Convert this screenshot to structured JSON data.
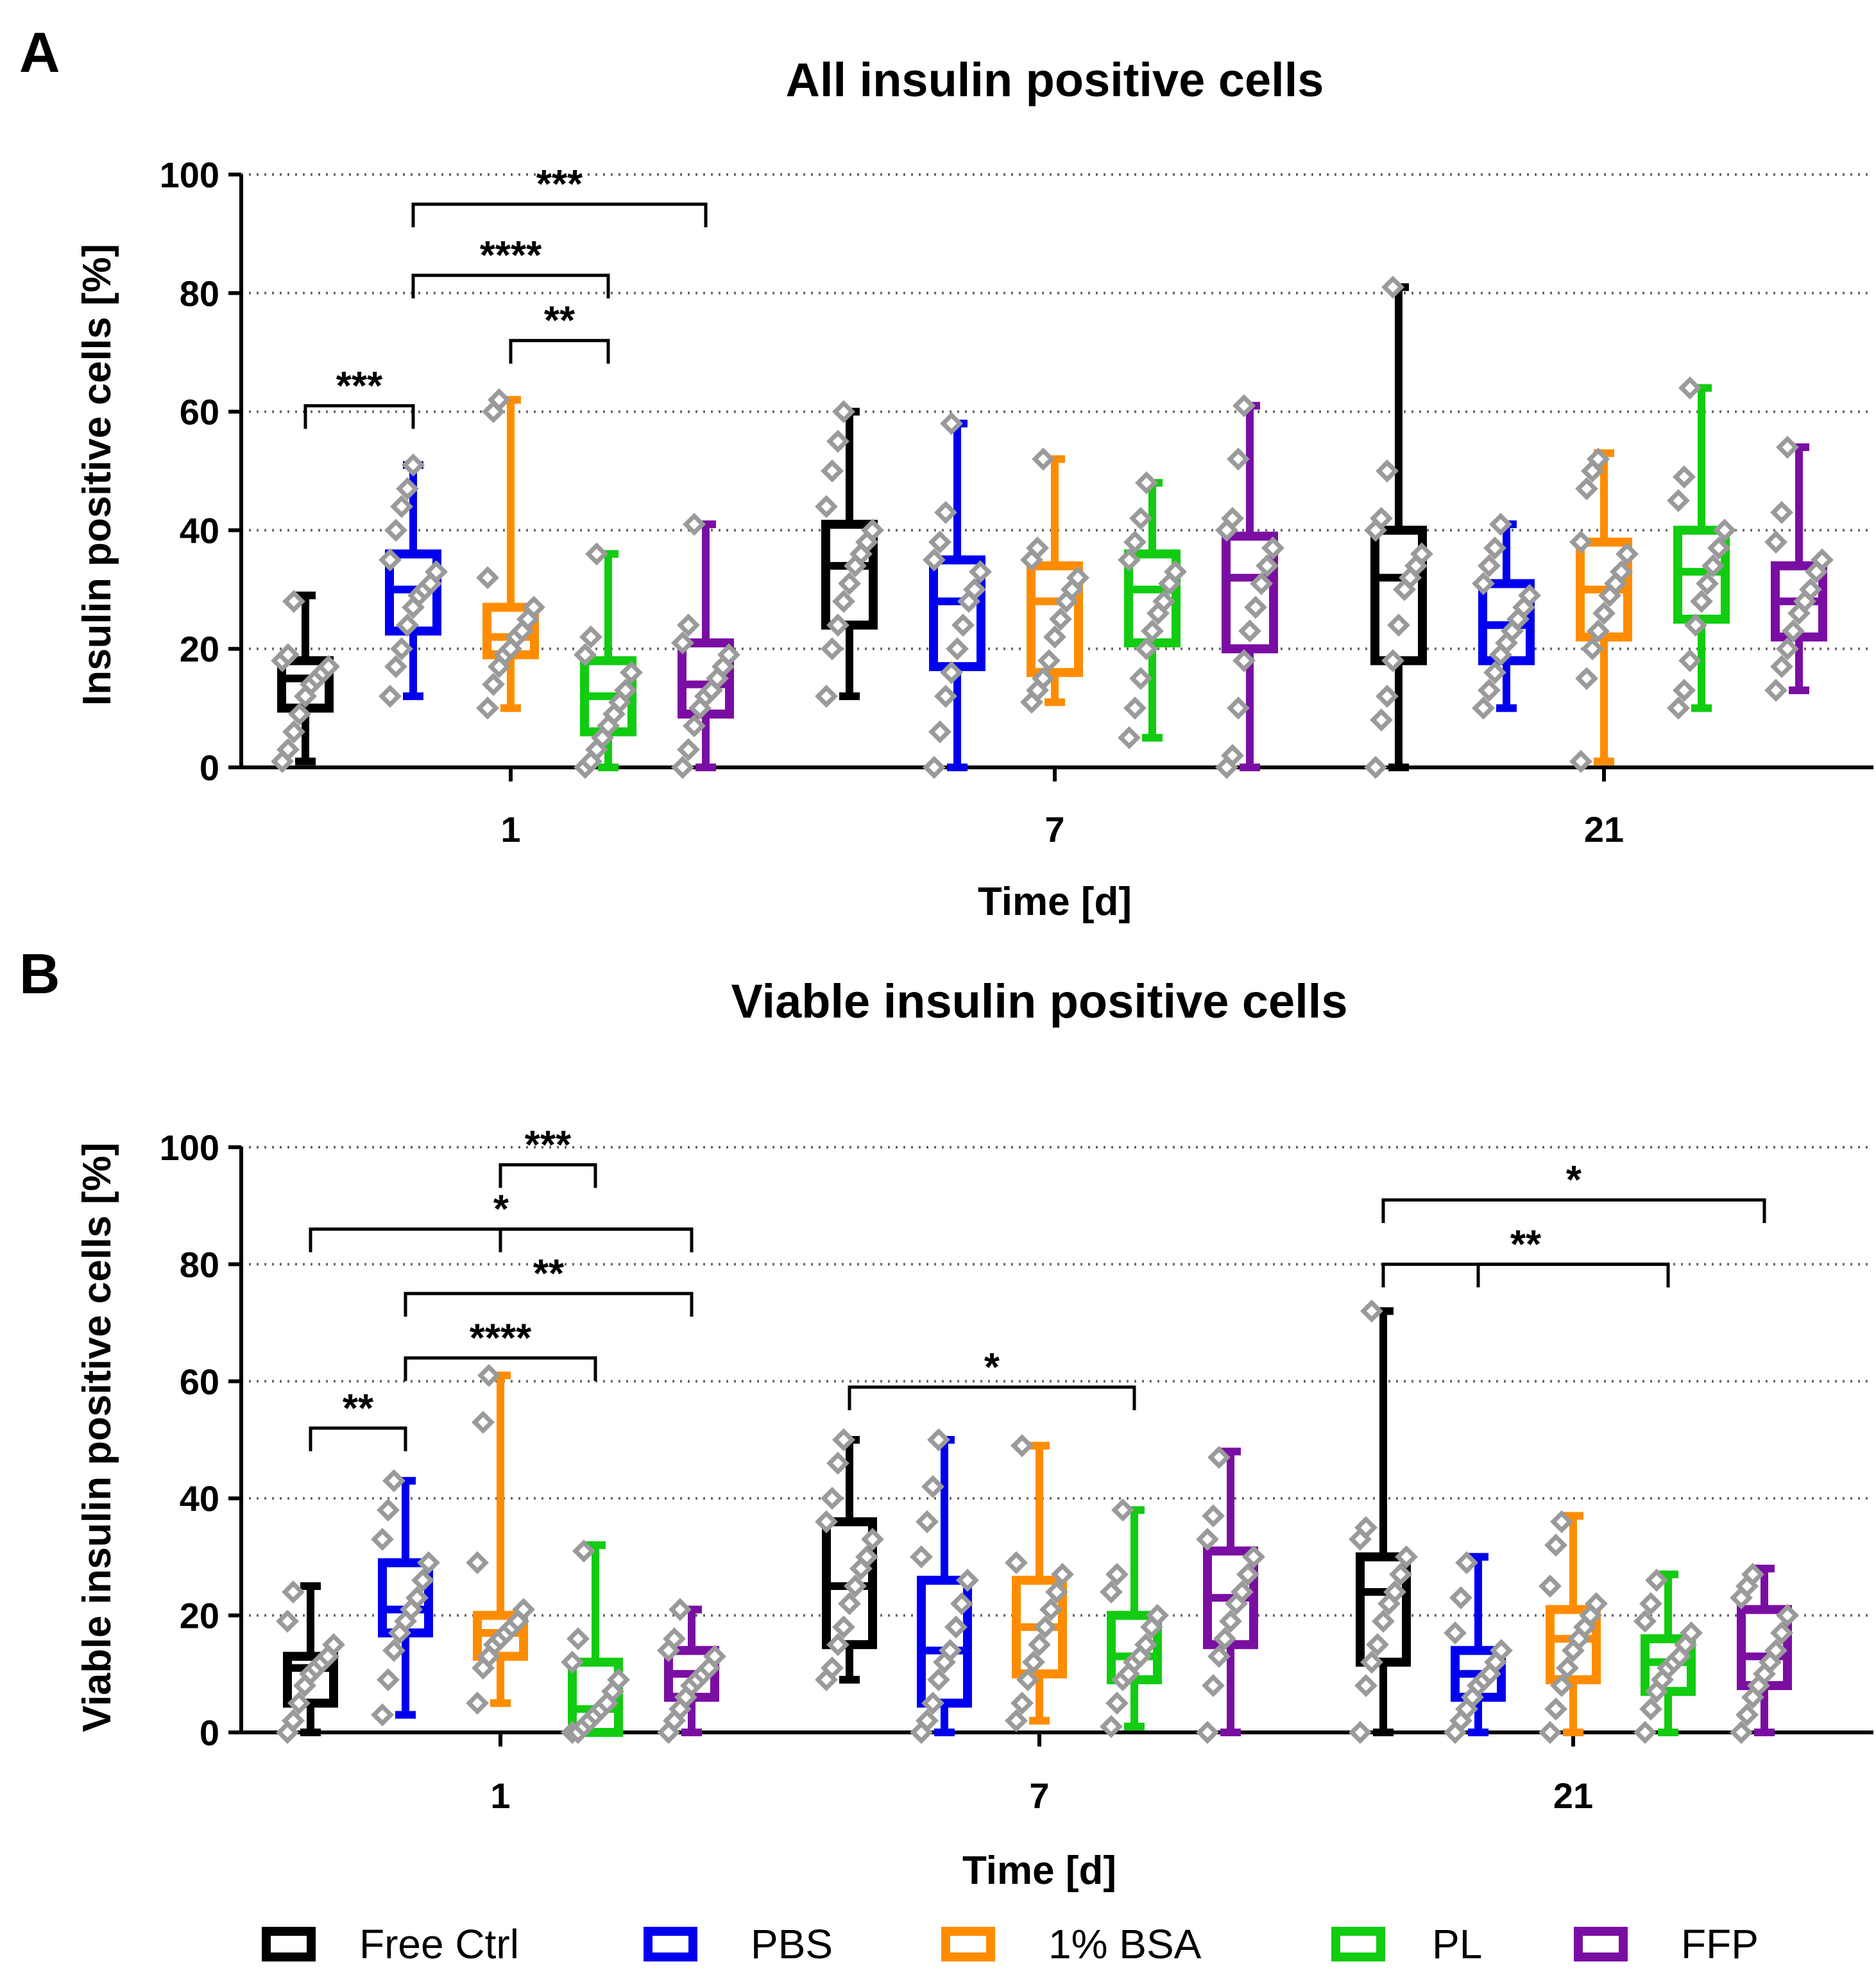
{
  "legend": [
    {
      "label": "Free Ctrl",
      "color": "#000000"
    },
    {
      "label": "PBS",
      "color": "#0000ee"
    },
    {
      "label": "1% BSA",
      "color": "#ff8c00"
    },
    {
      "label": "PL",
      "color": "#11cc11"
    },
    {
      "label": "FFP",
      "color": "#7a0ea3"
    }
  ],
  "chart_data": [
    {
      "panel": "A",
      "type": "box",
      "title": "All insulin positive cells",
      "xlabel": "Time [d]",
      "ylabel": "Insulin positive cells [%]",
      "ylim": [
        0,
        100
      ],
      "yticks": [
        0,
        20,
        40,
        60,
        80,
        100
      ],
      "grid": "dotted",
      "categories": [
        "1",
        "7",
        "21"
      ],
      "series": [
        {
          "name": "Free Ctrl",
          "boxes": [
            {
              "min": 1,
              "q1": 10,
              "median": 15,
              "q3": 18,
              "max": 29,
              "points": [
                1,
                3,
                6,
                9,
                12,
                14,
                15,
                16,
                17,
                18,
                19,
                28
              ]
            },
            {
              "min": 12,
              "q1": 24,
              "median": 34,
              "q3": 41,
              "max": 60,
              "points": [
                12,
                20,
                24,
                28,
                31,
                34,
                36,
                38,
                40,
                44,
                50,
                55,
                60
              ]
            },
            {
              "min": 0,
              "q1": 18,
              "median": 32,
              "q3": 40,
              "max": 81,
              "points": [
                0,
                8,
                12,
                18,
                24,
                30,
                32,
                34,
                36,
                40,
                42,
                50,
                81
              ]
            }
          ]
        },
        {
          "name": "PBS",
          "boxes": [
            {
              "min": 12,
              "q1": 23,
              "median": 30,
              "q3": 36,
              "max": 51,
              "points": [
                12,
                17,
                20,
                24,
                27,
                29,
                30,
                31,
                33,
                35,
                40,
                44,
                47,
                51
              ]
            },
            {
              "min": 0,
              "q1": 17,
              "median": 28,
              "q3": 35,
              "max": 58,
              "points": [
                0,
                6,
                12,
                16,
                20,
                24,
                28,
                30,
                33,
                35,
                38,
                43,
                58
              ]
            },
            {
              "min": 10,
              "q1": 18,
              "median": 24,
              "q3": 31,
              "max": 41,
              "points": [
                10,
                13,
                16,
                19,
                21,
                23,
                25,
                27,
                29,
                31,
                34,
                37,
                41
              ]
            }
          ]
        },
        {
          "name": "1% BSA",
          "boxes": [
            {
              "min": 10,
              "q1": 19,
              "median": 22,
              "q3": 27,
              "max": 62,
              "points": [
                10,
                14,
                17,
                19,
                20,
                22,
                23,
                25,
                27,
                32,
                60,
                62
              ]
            },
            {
              "min": 11,
              "q1": 16,
              "median": 28,
              "q3": 34,
              "max": 52,
              "points": [
                11,
                13,
                15,
                18,
                22,
                25,
                28,
                30,
                32,
                35,
                37,
                52
              ]
            },
            {
              "min": 1,
              "q1": 22,
              "median": 30,
              "q3": 38,
              "max": 53,
              "points": [
                1,
                15,
                20,
                23,
                26,
                29,
                31,
                33,
                36,
                38,
                47,
                50,
                52
              ]
            }
          ]
        },
        {
          "name": "PL",
          "boxes": [
            {
              "min": 0,
              "q1": 6,
              "median": 12,
              "q3": 18,
              "max": 36,
              "points": [
                0,
                1,
                3,
                5,
                7,
                9,
                11,
                13,
                16,
                19,
                22,
                36
              ]
            },
            {
              "min": 5,
              "q1": 21,
              "median": 30,
              "q3": 36,
              "max": 48,
              "points": [
                5,
                10,
                15,
                20,
                23,
                26,
                28,
                31,
                33,
                35,
                38,
                42,
                48
              ]
            },
            {
              "min": 10,
              "q1": 25,
              "median": 33,
              "q3": 40,
              "max": 64,
              "points": [
                10,
                13,
                18,
                24,
                28,
                31,
                34,
                37,
                40,
                45,
                49,
                64
              ]
            }
          ]
        },
        {
          "name": "FFP",
          "boxes": [
            {
              "min": 0,
              "q1": 9,
              "median": 14,
              "q3": 21,
              "max": 41,
              "points": [
                0,
                3,
                7,
                10,
                12,
                13,
                15,
                17,
                19,
                21,
                24,
                41
              ]
            },
            {
              "min": 0,
              "q1": 20,
              "median": 32,
              "q3": 39,
              "max": 61,
              "points": [
                0,
                2,
                10,
                18,
                23,
                27,
                31,
                34,
                37,
                40,
                42,
                52,
                61
              ]
            },
            {
              "min": 13,
              "q1": 22,
              "median": 28,
              "q3": 34,
              "max": 54,
              "points": [
                13,
                17,
                20,
                23,
                26,
                28,
                30,
                33,
                35,
                38,
                43,
                54
              ]
            }
          ]
        }
      ],
      "significance": [
        {
          "group": 0,
          "from": 0,
          "to": 1,
          "label": "***",
          "level": 61
        },
        {
          "group": 0,
          "from": 2,
          "to": 3,
          "label": "**",
          "level": 72
        },
        {
          "group": 0,
          "from": 1,
          "to": 3,
          "label": "****",
          "level": 83
        },
        {
          "group": 0,
          "from": 1,
          "to": 4,
          "label": "***",
          "level": 95
        }
      ]
    },
    {
      "panel": "B",
      "type": "box",
      "title": "Viable insulin positive cells",
      "xlabel": "Time [d]",
      "ylabel": "Viable insulin positive cells [%]",
      "ylim": [
        0,
        100
      ],
      "yticks": [
        0,
        20,
        40,
        60,
        80,
        100
      ],
      "grid": "dotted",
      "categories": [
        "1",
        "7",
        "21"
      ],
      "series": [
        {
          "name": "Free Ctrl",
          "boxes": [
            {
              "min": 0,
              "q1": 5,
              "median": 11,
              "q3": 13,
              "max": 25,
              "points": [
                0,
                2,
                5,
                8,
                10,
                11,
                12,
                13,
                15,
                19,
                24
              ]
            },
            {
              "min": 9,
              "q1": 15,
              "median": 25,
              "q3": 36,
              "max": 50,
              "points": [
                9,
                11,
                15,
                18,
                22,
                25,
                28,
                30,
                33,
                36,
                40,
                46,
                50
              ]
            },
            {
              "min": 0,
              "q1": 12,
              "median": 24,
              "q3": 30,
              "max": 72,
              "points": [
                0,
                8,
                12,
                15,
                19,
                22,
                24,
                27,
                30,
                33,
                35,
                72
              ]
            }
          ]
        },
        {
          "name": "PBS",
          "boxes": [
            {
              "min": 3,
              "q1": 17,
              "median": 21,
              "q3": 29,
              "max": 43,
              "points": [
                3,
                9,
                14,
                17,
                19,
                21,
                23,
                26,
                29,
                33,
                38,
                43
              ]
            },
            {
              "min": 0,
              "q1": 5,
              "median": 14,
              "q3": 26,
              "max": 50,
              "points": [
                0,
                2,
                5,
                9,
                12,
                14,
                18,
                22,
                26,
                30,
                36,
                42,
                50
              ]
            },
            {
              "min": 0,
              "q1": 6,
              "median": 10,
              "q3": 14,
              "max": 30,
              "points": [
                0,
                2,
                4,
                6,
                8,
                9,
                10,
                12,
                14,
                17,
                23,
                29
              ]
            }
          ]
        },
        {
          "name": "1% BSA",
          "boxes": [
            {
              "min": 5,
              "q1": 13,
              "median": 17,
              "q3": 20,
              "max": 61,
              "points": [
                5,
                11,
                13,
                15,
                16,
                17,
                18,
                19,
                21,
                29,
                53,
                61
              ]
            },
            {
              "min": 2,
              "q1": 10,
              "median": 18,
              "q3": 26,
              "max": 49,
              "points": [
                2,
                5,
                9,
                12,
                15,
                18,
                21,
                24,
                27,
                29,
                49
              ]
            },
            {
              "min": 0,
              "q1": 9,
              "median": 16,
              "q3": 21,
              "max": 37,
              "points": [
                0,
                4,
                8,
                11,
                14,
                16,
                18,
                20,
                22,
                25,
                32,
                36
              ]
            }
          ]
        },
        {
          "name": "PL",
          "boxes": [
            {
              "min": 0,
              "q1": 0,
              "median": 4,
              "q3": 12,
              "max": 32,
              "points": [
                0,
                0,
                1,
                2,
                3,
                4,
                5,
                7,
                9,
                12,
                16,
                31
              ]
            },
            {
              "min": 1,
              "q1": 9,
              "median": 13,
              "q3": 20,
              "max": 38,
              "points": [
                1,
                5,
                9,
                10,
                12,
                13,
                15,
                18,
                20,
                24,
                27,
                38
              ]
            },
            {
              "min": 0,
              "q1": 7,
              "median": 12,
              "q3": 16,
              "max": 27,
              "points": [
                0,
                4,
                7,
                9,
                11,
                12,
                13,
                15,
                17,
                19,
                22,
                26
              ]
            }
          ]
        },
        {
          "name": "FFP",
          "boxes": [
            {
              "min": 0,
              "q1": 6,
              "median": 10,
              "q3": 14,
              "max": 21,
              "points": [
                0,
                2,
                4,
                6,
                8,
                9,
                10,
                11,
                13,
                14,
                16,
                21
              ]
            },
            {
              "min": 0,
              "q1": 15,
              "median": 23,
              "q3": 31,
              "max": 48,
              "points": [
                0,
                8,
                13,
                16,
                19,
                22,
                24,
                27,
                30,
                33,
                37,
                47
              ]
            },
            {
              "min": 0,
              "q1": 8,
              "median": 13,
              "q3": 21,
              "max": 28,
              "points": [
                0,
                3,
                6,
                8,
                10,
                12,
                14,
                17,
                20,
                23,
                25,
                27
              ]
            }
          ]
        }
      ],
      "significance": [
        {
          "group": 0,
          "from": 0,
          "to": 1,
          "label": "**",
          "level": 52
        },
        {
          "group": 0,
          "from": 1,
          "to": 3,
          "label": "****",
          "level": 64
        },
        {
          "group": 0,
          "from": 1,
          "to": 4,
          "label": "**",
          "level": 75
        },
        {
          "group": 0,
          "from": 2,
          "to": 4,
          "label": "",
          "level": 86
        },
        {
          "group": 0,
          "from": 0,
          "to": 4,
          "label": "*",
          "level": 86
        },
        {
          "group": 0,
          "from": 2,
          "to": 3,
          "label": "***",
          "level": 97
        },
        {
          "group": 1,
          "from": 0,
          "to": 3,
          "label": "*",
          "level": 59
        },
        {
          "group": 2,
          "from": 1,
          "to": 3,
          "label": "",
          "level": 80
        },
        {
          "group": 2,
          "from": 0,
          "to": 3,
          "label": "**",
          "level": 80
        },
        {
          "group": 2,
          "from": 0,
          "to": 4,
          "label": "*",
          "level": 91
        }
      ]
    }
  ]
}
